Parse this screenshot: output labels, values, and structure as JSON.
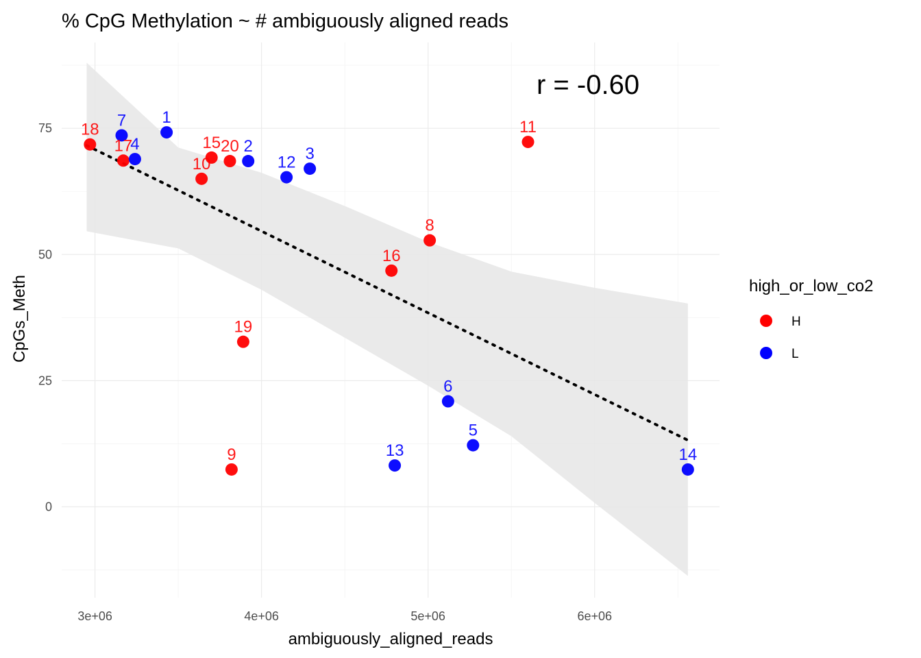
{
  "chart_data": {
    "type": "scatter",
    "title": "% CpG Methylation ~ # ambiguously aligned reads",
    "xlabel": "ambiguously_aligned_reads",
    "ylabel": "CpGs_Meth",
    "xlim": [
      2800000,
      6750000
    ],
    "ylim": [
      -18,
      92
    ],
    "x_ticks": [
      3000000,
      4000000,
      5000000,
      6000000
    ],
    "x_tick_labels": [
      "3e+06",
      "4e+06",
      "5e+06",
      "6e+06"
    ],
    "y_ticks": [
      0,
      25,
      50,
      75
    ],
    "y_tick_labels": [
      "0",
      "25",
      "50",
      "75"
    ],
    "grid": true,
    "legend": {
      "title": "high_or_low_co2",
      "placement": "right",
      "entries": [
        {
          "label": "H",
          "color": "#ff0000"
        },
        {
          "label": "L",
          "color": "#0000ff"
        }
      ]
    },
    "annotation": "r = -0.60",
    "series": [
      {
        "name": "H",
        "color": "#ff0000",
        "points": [
          {
            "x": 3820000,
            "y": 7.4,
            "label": "9"
          },
          {
            "x": 3890000,
            "y": 32.7,
            "label": "19"
          },
          {
            "x": 5010000,
            "y": 52.8,
            "label": "8"
          },
          {
            "x": 4780000,
            "y": 46.8,
            "label": "16"
          },
          {
            "x": 5600000,
            "y": 72.3,
            "label": "11"
          },
          {
            "x": 2970000,
            "y": 71.8,
            "label": "18"
          },
          {
            "x": 3170000,
            "y": 68.6,
            "label": "17"
          },
          {
            "x": 3640000,
            "y": 65.0,
            "label": "10"
          },
          {
            "x": 3700000,
            "y": 69.2,
            "label": "15"
          },
          {
            "x": 3810000,
            "y": 68.5,
            "label": "20"
          }
        ]
      },
      {
        "name": "L",
        "color": "#0000ff",
        "points": [
          {
            "x": 3160000,
            "y": 73.6,
            "label": "7"
          },
          {
            "x": 3240000,
            "y": 68.9,
            "label": "4"
          },
          {
            "x": 3430000,
            "y": 74.2,
            "label": "1"
          },
          {
            "x": 3920000,
            "y": 68.5,
            "label": "2"
          },
          {
            "x": 4150000,
            "y": 65.3,
            "label": "12"
          },
          {
            "x": 4290000,
            "y": 67.0,
            "label": "3"
          },
          {
            "x": 4800000,
            "y": 8.2,
            "label": "13"
          },
          {
            "x": 5120000,
            "y": 20.9,
            "label": "6"
          },
          {
            "x": 5270000,
            "y": 12.2,
            "label": "5"
          },
          {
            "x": 6560000,
            "y": 7.4,
            "label": "14"
          }
        ]
      }
    ],
    "trend_line": {
      "style": "dotted",
      "color": "#000000",
      "x": [
        2950000,
        6560000
      ],
      "y": [
        71.6,
        13.2
      ]
    },
    "confidence_band": {
      "color": "#e6e6e6",
      "x": [
        2950000,
        3500000,
        4000000,
        4500000,
        5000000,
        5500000,
        6000000,
        6560000
      ],
      "upper": [
        88.0,
        71.2,
        66.2,
        59.6,
        52.5,
        46.6,
        43.4,
        40.3
      ],
      "lower": [
        54.6,
        51.2,
        43.0,
        33.5,
        24.0,
        14.0,
        0.8,
        -13.7
      ]
    }
  }
}
